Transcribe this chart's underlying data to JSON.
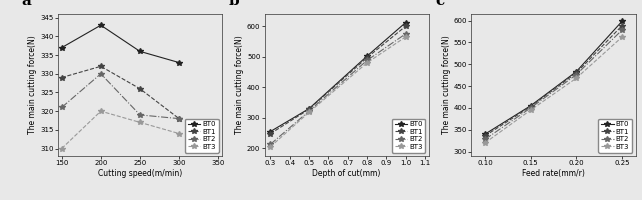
{
  "bg_color": "#e8e8e8",
  "panel_a": {
    "label": "a",
    "xlabel": "Cutting speed(m/min)",
    "ylabel": "The main cutting force(N)",
    "xlim": [
      145,
      355
    ],
    "ylim": [
      308,
      346
    ],
    "xticks": [
      150,
      200,
      250,
      300,
      350
    ],
    "yticks": [
      310,
      315,
      320,
      325,
      330,
      335,
      340,
      345
    ],
    "series": {
      "BT0": {
        "x": [
          150,
          200,
          250,
          300
        ],
        "y": [
          337,
          343,
          336,
          333
        ],
        "linestyle": "-",
        "marker": "*",
        "color": "#222222"
      },
      "BT1": {
        "x": [
          150,
          200,
          250,
          300
        ],
        "y": [
          329,
          332,
          326,
          318
        ],
        "linestyle": "--",
        "marker": "*",
        "color": "#444444"
      },
      "BT2": {
        "x": [
          150,
          200,
          250,
          300
        ],
        "y": [
          321,
          330,
          319,
          318
        ],
        "linestyle": "-.",
        "marker": "*",
        "color": "#666666"
      },
      "BT3": {
        "x": [
          150,
          200,
          250,
          300
        ],
        "y": [
          310,
          320,
          317,
          314
        ],
        "linestyle": "--",
        "marker": "*",
        "color": "#999999"
      }
    }
  },
  "panel_b": {
    "label": "b",
    "xlabel": "Depth of cut(mm)",
    "ylabel": "The main cutting force(N)",
    "xlim": [
      0.27,
      1.12
    ],
    "ylim": [
      175,
      640
    ],
    "xticks": [
      0.3,
      0.4,
      0.5,
      0.6,
      0.7,
      0.8,
      0.9,
      1.0,
      1.1
    ],
    "yticks": [
      200,
      300,
      400,
      500,
      600
    ],
    "series": {
      "BT0": {
        "x": [
          0.3,
          0.5,
          0.8,
          1.0
        ],
        "y": [
          255,
          330,
          502,
          612
        ],
        "linestyle": "-",
        "marker": "*",
        "color": "#222222"
      },
      "BT1": {
        "x": [
          0.3,
          0.5,
          0.8,
          1.0
        ],
        "y": [
          248,
          328,
          497,
          600
        ],
        "linestyle": "--",
        "marker": "*",
        "color": "#444444"
      },
      "BT2": {
        "x": [
          0.3,
          0.5,
          0.8,
          1.0
        ],
        "y": [
          213,
          322,
          488,
          575
        ],
        "linestyle": "-.",
        "marker": "*",
        "color": "#666666"
      },
      "BT3": {
        "x": [
          0.3,
          0.5,
          0.8,
          1.0
        ],
        "y": [
          205,
          318,
          480,
          565
        ],
        "linestyle": "--",
        "marker": "*",
        "color": "#999999"
      }
    }
  },
  "panel_c": {
    "label": "c",
    "xlabel": "Feed rate(mm/r)",
    "ylabel": "The main cutting force(N)",
    "xlim": [
      0.085,
      0.265
    ],
    "ylim": [
      290,
      615
    ],
    "xticks": [
      0.1,
      0.15,
      0.2,
      0.25
    ],
    "yticks": [
      300,
      350,
      400,
      450,
      500,
      550,
      600
    ],
    "series": {
      "BT0": {
        "x": [
          0.1,
          0.15,
          0.2,
          0.25
        ],
        "y": [
          340,
          405,
          483,
          598
        ],
        "linestyle": "-",
        "marker": "*",
        "color": "#222222"
      },
      "BT1": {
        "x": [
          0.1,
          0.15,
          0.2,
          0.25
        ],
        "y": [
          336,
          403,
          480,
          588
        ],
        "linestyle": "--",
        "marker": "*",
        "color": "#444444"
      },
      "BT2": {
        "x": [
          0.1,
          0.15,
          0.2,
          0.25
        ],
        "y": [
          328,
          400,
          476,
          578
        ],
        "linestyle": "-.",
        "marker": "*",
        "color": "#666666"
      },
      "BT3": {
        "x": [
          0.1,
          0.15,
          0.2,
          0.25
        ],
        "y": [
          320,
          395,
          468,
          562
        ],
        "linestyle": "--",
        "marker": "*",
        "color": "#999999"
      }
    }
  }
}
